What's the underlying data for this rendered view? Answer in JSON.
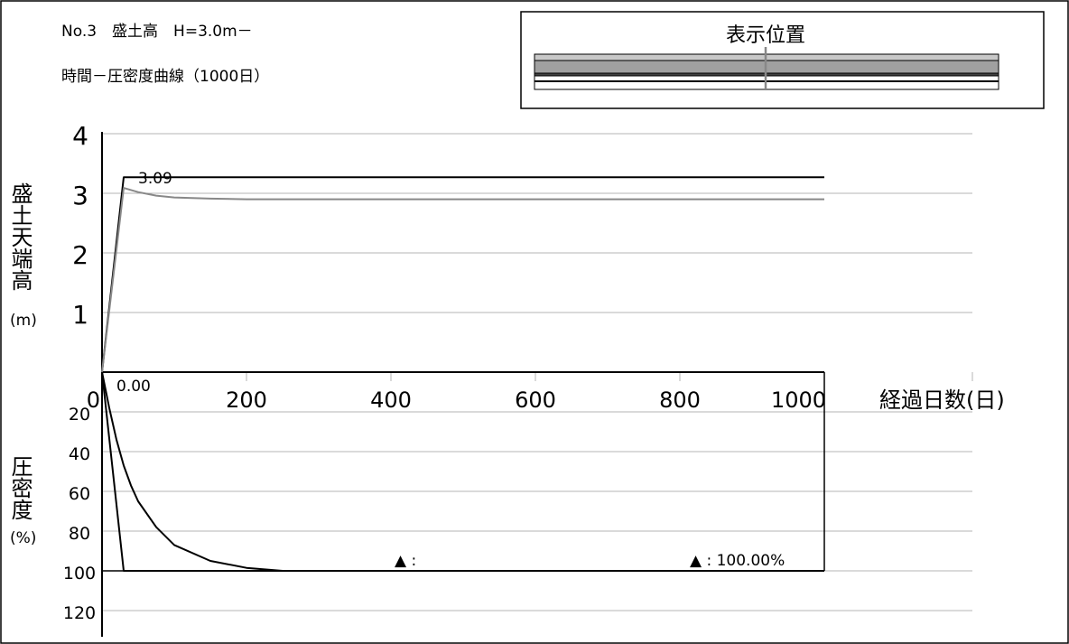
{
  "header": {
    "line1": "No.3　盛土高　H=3.0m－",
    "line2": "時間－圧密度曲線（1000日）"
  },
  "position_box": {
    "title": "表示位置"
  },
  "colors": {
    "ink": "#000000",
    "measured": "#888888",
    "grid": "#b4b4b4",
    "section_fill": "#a0a0a0"
  },
  "chart_data": [
    {
      "type": "line",
      "ylabel": "盛土天端高",
      "yunit": "(m)",
      "ylim": [
        0,
        4
      ],
      "yticks": [
        1,
        2,
        3,
        4
      ],
      "xlim": [
        0,
        1200
      ],
      "grid": true,
      "series": [
        {
          "x": [
            0,
            30,
            1000
          ],
          "y": [
            0,
            3.27,
            3.27
          ]
        },
        {
          "x": [
            0,
            30,
            50,
            75,
            100,
            150,
            200,
            400,
            600,
            800,
            1000
          ],
          "y": [
            0,
            3.09,
            3.02,
            2.96,
            2.93,
            2.91,
            2.9,
            2.9,
            2.9,
            2.9,
            2.9
          ]
        }
      ],
      "annotations": [
        {
          "text": "3.09",
          "x": 45,
          "y": 3.09
        }
      ]
    },
    {
      "type": "line",
      "xlabel": "経過日数(日)",
      "xticks": [
        0,
        200,
        400,
        600,
        800,
        1000
      ],
      "ylabel": "圧密度",
      "yunit": "(%)",
      "ylim": [
        0,
        120
      ],
      "yticks": [
        20,
        40,
        60,
        80,
        100,
        120
      ],
      "xlim": [
        0,
        1200
      ],
      "grid": true,
      "series": [
        {
          "x": [
            0,
            30,
            1000
          ],
          "y": [
            0,
            100,
            100
          ]
        },
        {
          "x": [
            0,
            10,
            20,
            30,
            40,
            50,
            75,
            100,
            150,
            200,
            250
          ],
          "y": [
            0,
            18,
            34,
            47,
            57,
            65,
            78,
            87,
            95,
            98.5,
            100
          ]
        }
      ],
      "annotations": [
        {
          "text": "0.00",
          "x": 20,
          "y": 4
        },
        {
          "text": "▲ :",
          "x": 402,
          "y": 95
        },
        {
          "text": "▲ : 100.00%",
          "x": 805,
          "y": 95
        }
      ]
    }
  ]
}
